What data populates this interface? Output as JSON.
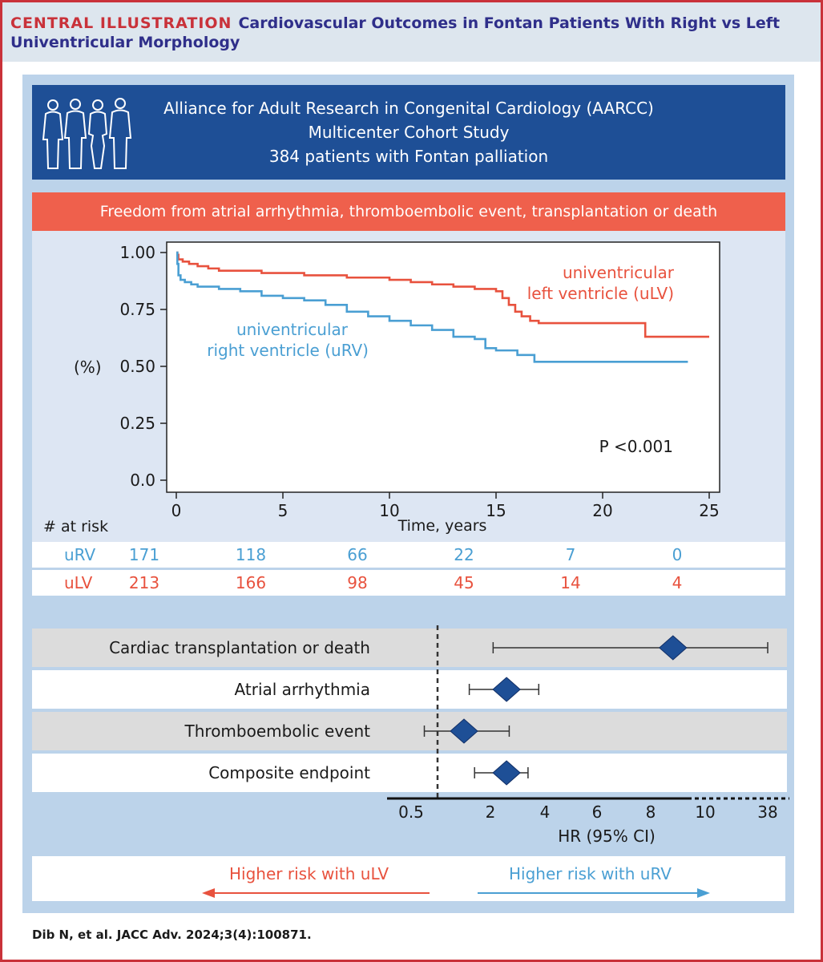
{
  "header": {
    "label": "CENTRAL ILLUSTRATION",
    "title": "Cardiovascular Outcomes in Fontan Patients With Right vs Left Univentricular Morphology"
  },
  "cohort": {
    "line1": "Alliance for Adult Research in Congenital Cardiology (AARCC)",
    "line2": "Multicenter Cohort Study",
    "line3": "384 patients with Fontan palliation",
    "icon": "people-icon"
  },
  "outcome_banner": "Freedom from atrial arrhythmia, thromboembolic event, transplantation or death",
  "colors": {
    "uLV": "#e8523e",
    "uRV": "#4a9fd3",
    "navy": "#1e4f96",
    "frame": "#c9323a"
  },
  "chart_data": [
    {
      "type": "line",
      "ylabel": "(%)",
      "xlabel": "Time, years",
      "xlim": [
        0,
        25
      ],
      "ylim": [
        0,
        1.0
      ],
      "x_ticks": [
        "0",
        "5",
        "10",
        "15",
        "20",
        "25"
      ],
      "y_ticks": [
        "0.0",
        "0.25",
        "0.50",
        "0.75",
        "1.00"
      ],
      "annotation": "P <0.001",
      "series": [
        {
          "name": "univentricular left ventricle (uLV)",
          "label_line1": "univentricular",
          "label_line2": "left ventricle (uLV)",
          "x": [
            0,
            0.05,
            0.1,
            0.3,
            0.6,
            1.0,
            1.5,
            2.0,
            3.0,
            4.0,
            5.0,
            6.0,
            7.0,
            8.0,
            9.0,
            10.0,
            11.0,
            12.0,
            13.0,
            14.0,
            15.0,
            15.3,
            15.6,
            15.9,
            16.2,
            16.6,
            17.0,
            18.0,
            19.0,
            20.0,
            21.0,
            21.7,
            22.0,
            25.0
          ],
          "y": [
            1.0,
            0.99,
            0.97,
            0.96,
            0.95,
            0.94,
            0.93,
            0.92,
            0.92,
            0.91,
            0.91,
            0.9,
            0.9,
            0.89,
            0.89,
            0.88,
            0.87,
            0.86,
            0.85,
            0.84,
            0.83,
            0.8,
            0.77,
            0.74,
            0.72,
            0.7,
            0.69,
            0.69,
            0.69,
            0.69,
            0.69,
            0.69,
            0.63,
            0.63
          ]
        },
        {
          "name": "univentricular right ventricle (uRV)",
          "label_line1": "univentricular",
          "label_line2": "right ventricle (uRV)",
          "x": [
            0,
            0.05,
            0.1,
            0.2,
            0.4,
            0.7,
            1.0,
            2.0,
            3.0,
            4.0,
            5.0,
            6.0,
            7.0,
            8.0,
            9.0,
            10.0,
            11.0,
            12.0,
            13.0,
            14.0,
            14.5,
            15.0,
            16.0,
            16.8,
            18.0,
            20.0,
            22.0,
            24.0
          ],
          "y": [
            1.0,
            0.95,
            0.9,
            0.88,
            0.87,
            0.86,
            0.85,
            0.84,
            0.83,
            0.81,
            0.8,
            0.79,
            0.77,
            0.74,
            0.72,
            0.7,
            0.68,
            0.66,
            0.63,
            0.62,
            0.58,
            0.57,
            0.55,
            0.52,
            0.52,
            0.52,
            0.52,
            0.52
          ]
        }
      ]
    },
    {
      "type": "scatter",
      "xlabel": "HR (95% CI)",
      "x_ticks": [
        "0.5",
        "2",
        "4",
        "6",
        "8",
        "10",
        "38"
      ],
      "reference_line": 1,
      "items": [
        {
          "label": "Cardiac transplantation or death",
          "hr": 8.8,
          "lo": 2.1,
          "hi": 38
        },
        {
          "label": "Atrial arrhythmia",
          "hr": 2.6,
          "lo": 1.6,
          "hi": 3.8
        },
        {
          "label": "Thromboembolic event",
          "hr": 1.5,
          "lo": 0.75,
          "hi": 2.7
        },
        {
          "label": "Composite endpoint",
          "hr": 2.6,
          "lo": 1.7,
          "hi": 3.4
        }
      ]
    }
  ],
  "at_risk": {
    "label": "# at risk",
    "rows": [
      {
        "name": "uRV",
        "values": [
          "171",
          "118",
          "66",
          "22",
          "7",
          "0"
        ]
      },
      {
        "name": "uLV",
        "values": [
          "213",
          "166",
          "98",
          "45",
          "14",
          "4"
        ]
      }
    ]
  },
  "direction": {
    "left": "Higher risk with uLV",
    "right": "Higher risk with uRV"
  },
  "citation": "Dib N, et al. JACC Adv. 2024;3(4):100871."
}
